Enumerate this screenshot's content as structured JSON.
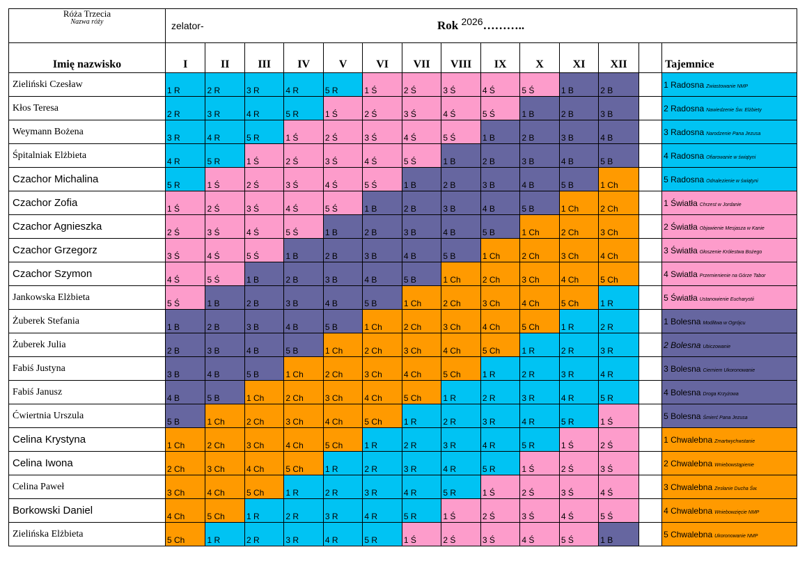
{
  "header": {
    "rose_name": "Róża Trzecia",
    "rose_caption": "Nazwa róży",
    "zelator_label": "zelator-",
    "year_label": "Rok",
    "year_value": "2026",
    "year_dots": "……….."
  },
  "columns": {
    "name_header": "Imię nazwisko",
    "months": [
      "I",
      "II",
      "III",
      "IV",
      "V",
      "VI",
      "VII",
      "VIII",
      "IX",
      "X",
      "XI",
      "XII"
    ],
    "mysteries_header": "Tajemnice"
  },
  "colors": {
    "R": "#00c3f3",
    "S": "#fd9ccb",
    "B": "#6666a0",
    "Ch": "#ff9a00"
  },
  "rows": [
    {
      "name": "Zieliński Czesław",
      "font": "serif",
      "cells": [
        "1 R",
        "2 R",
        "3 R",
        "4 R",
        "5 R",
        "1 Ś",
        "2 Ś",
        "3 Ś",
        "4 Ś",
        "5 Ś",
        "1 B",
        "2 B"
      ],
      "mystery": {
        "title": "1 Radosna",
        "sub": "Zwiastowanie NMP",
        "color": "R"
      }
    },
    {
      "name": "Kłos Teresa",
      "font": "serif",
      "cells": [
        "2 R",
        "3 R",
        "4 R",
        "5 R",
        "1 Ś",
        "2 Ś",
        "3 Ś",
        "4 Ś",
        "5 Ś",
        "1 B",
        "2 B",
        "3 B"
      ],
      "mystery": {
        "title": "2 Radosna",
        "sub": "Nawiedzenie Św. Elżbiety",
        "color": "R"
      }
    },
    {
      "name": "Weymann Bożena",
      "font": "serif",
      "cells": [
        "3 R",
        "4 R",
        "5 R",
        "1 Ś",
        "2 Ś",
        "3 Ś",
        "4 Ś",
        "5 Ś",
        "1 B",
        "2 B",
        "3 B",
        "4 B"
      ],
      "mystery": {
        "title": "3 Radosna",
        "sub": "Narodzenie Pana Jezusa",
        "color": "R"
      }
    },
    {
      "name": "Śpitalniak Elżbieta",
      "font": "serif",
      "cells": [
        "4 R",
        "5 R",
        "1 Ś",
        "2 Ś",
        "3 Ś",
        "4 Ś",
        "5 Ś",
        "1 B",
        "2 B",
        "3 B",
        "4 B",
        "5 B"
      ],
      "mystery": {
        "title": "4 Radosna",
        "sub": "Ofiarowanie w świątyni",
        "color": "R"
      }
    },
    {
      "name": "Czachor Michalina",
      "font": "sans",
      "cells": [
        "5 R",
        "1 Ś",
        "2 Ś",
        "3 Ś",
        "4 Ś",
        "5 Ś",
        "1 B",
        "2 B",
        "3 B",
        "4 B",
        "5 B",
        "1 Ch"
      ],
      "mystery": {
        "title": "5 Radosna",
        "sub": "Odnalezienie w świątyni",
        "color": "R"
      }
    },
    {
      "name": "Czachor Zofia",
      "font": "sans",
      "cells": [
        "1 Ś",
        "2 Ś",
        "3 Ś",
        "4 Ś",
        "5 Ś",
        "1 B",
        "2 B",
        "3 B",
        "4 B",
        "5 B",
        "1 Ch",
        "2 Ch"
      ],
      "mystery": {
        "title": "1 Światła",
        "sub": "Chrzest w Jordanie",
        "color": "S"
      }
    },
    {
      "name": "Czachor Agnieszka",
      "font": "sans",
      "cells": [
        "2 Ś",
        "3 Ś",
        "4 Ś",
        "5 Ś",
        "1 B",
        "2 B",
        "3 B",
        "4 B",
        "5 B",
        "1 Ch",
        "2 Ch",
        "3 Ch"
      ],
      "mystery": {
        "title": "2 Światła",
        "sub": "Objawienie Mesjasza w Kanie",
        "color": "S"
      }
    },
    {
      "name": "Czachor Grzegorz",
      "font": "sans",
      "cells": [
        "3 Ś",
        "4 Ś",
        "5 Ś",
        "1 B",
        "2 B",
        "3 B",
        "4 B",
        "5 B",
        "1 Ch",
        "2 Ch",
        "3 Ch",
        "4 Ch"
      ],
      "mystery": {
        "title": "3 Światła",
        "sub": "Głoszenie Królestwa Bożego",
        "color": "S"
      }
    },
    {
      "name": "Czachor Szymon",
      "font": "sans",
      "cells": [
        "4 Ś",
        "5 Ś",
        "1 B",
        "2 B",
        "3 B",
        "4 B",
        "5 B",
        "1 Ch",
        "2 Ch",
        "3 Ch",
        "4 Ch",
        "5 Ch"
      ],
      "mystery": {
        "title": "4 Swiatla",
        "sub": "Przemienienie na Górze Tabor",
        "color": "S"
      }
    },
    {
      "name": "Jankowska Elżbieta",
      "font": "serif",
      "cells": [
        "5 Ś",
        "1 B",
        "2 B",
        "3 B",
        "4 B",
        "5 B",
        "1 Ch",
        "2 Ch",
        "3 Ch",
        "4 Ch",
        "5 Ch",
        "1 R"
      ],
      "mystery": {
        "title": "5 Światła",
        "sub": "Ustanowienie Eucharystii",
        "color": "S"
      }
    },
    {
      "name": "Żuberek Stefania",
      "font": "serif",
      "cells": [
        "1 B",
        "2 B",
        "3 B",
        "4 B",
        "5 B",
        "1 Ch",
        "2 Ch",
        "3 Ch",
        "4 Ch",
        "5 Ch",
        "1 R",
        "2 R"
      ],
      "mystery": {
        "title": "1 Bolesna",
        "sub": "Modlitwa w Ogrójcu",
        "color": "B"
      }
    },
    {
      "name": "Żuberek Julia",
      "font": "serif",
      "cells": [
        "2 B",
        "3 B",
        "4 B",
        "5 B",
        "1 Ch",
        "2 Ch",
        "3 Ch",
        "4 Ch",
        "5 Ch",
        "1 R",
        "2 R",
        "3 R"
      ],
      "mystery": {
        "title": "2 Bolesna",
        "sub": "Ubiczowanie",
        "color": "B",
        "italic": true
      }
    },
    {
      "name": "Fabiś Justyna",
      "font": "serif",
      "cells": [
        "3 B",
        "4 B",
        "5 B",
        "1 Ch",
        "2 Ch",
        "3 Ch",
        "4 Ch",
        "5 Ch",
        "1 R",
        "2 R",
        "3 R",
        "4 R"
      ],
      "mystery": {
        "title": "3 Bolesna",
        "sub": "Cierniem Ukoronowanie",
        "color": "B"
      }
    },
    {
      "name": "Fabiś Janusz",
      "font": "serif",
      "cells": [
        "4 B",
        "5 B",
        "1 Ch",
        "2 Ch",
        "3 Ch",
        "4 Ch",
        "5 Ch",
        "1 R",
        "2 R",
        "3 R",
        "4 R",
        "5 R"
      ],
      "mystery": {
        "title": "4 Bolesna",
        "sub": "Droga Krzyżowa",
        "color": "B"
      }
    },
    {
      "name": "Ćwiertnia Urszula",
      "font": "serif",
      "cells": [
        "5 B",
        "1 Ch",
        "2 Ch",
        "3 Ch",
        "4 Ch",
        "5 Ch",
        "1 R",
        "2 R",
        "3 R",
        "4 R",
        "5 R",
        "1 Ś"
      ],
      "mystery": {
        "title": "5 Bolesna",
        "sub": "Śmierć Pana Jezusa",
        "color": "B"
      }
    },
    {
      "name": "Celina Krystyna",
      "font": "sans",
      "cells": [
        "1 Ch",
        "2 Ch",
        "3 Ch",
        "4 Ch",
        "5 Ch",
        "1 R",
        "2 R",
        "3 R",
        "4 R",
        "5 R",
        "1 Ś",
        "2 Ś"
      ],
      "mystery": {
        "title": "1 Chwalebna",
        "sub": "Zmartwychwstanie",
        "color": "Ch"
      }
    },
    {
      "name": "Celina Iwona",
      "font": "sans",
      "cells": [
        "2 Ch",
        "3 Ch",
        "4 Ch",
        "5 Ch",
        "1 R",
        "2 R",
        "3 R",
        "4 R",
        "5 R",
        "1 Ś",
        "2 Ś",
        "3 Ś"
      ],
      "mystery": {
        "title": "2 Chwalebna",
        "sub": "Wniebowstąpienie",
        "color": "Ch"
      }
    },
    {
      "name": "Celina Paweł",
      "font": "serif",
      "cells": [
        "3 Ch",
        "4 Ch",
        "5 Ch",
        "1 R",
        "2 R",
        "3 R",
        "4 R",
        "5 R",
        "1 Ś",
        "2 Ś",
        "3 Ś",
        "4 Ś"
      ],
      "mystery": {
        "title": "3 Chwalebna",
        "sub": "Zesłanie Ducha Św.",
        "color": "Ch"
      }
    },
    {
      "name": "Borkowski Daniel",
      "font": "sans",
      "cells": [
        "4 Ch",
        "5 Ch",
        "1 R",
        "2 R",
        "3 R",
        "4 R",
        "5 R",
        "1 Ś",
        "2 Ś",
        "3 Ś",
        "4 Ś",
        "5 Ś"
      ],
      "mystery": {
        "title": "4 Chwalebna",
        "sub": "Wniebowzięcie NMP",
        "color": "Ch"
      }
    },
    {
      "name": "Zielińska Elżbieta",
      "font": "serif",
      "cells": [
        "5 Ch",
        "1 R",
        "2 R",
        "3 R",
        "4 R",
        "5 R",
        "1 Ś",
        "2 Ś",
        "3 Ś",
        "4 Ś",
        "5 Ś",
        "1 B"
      ],
      "mystery": {
        "title": "5 Chwalebna",
        "sub": "Ukoronowanie NMP",
        "color": "Ch"
      }
    }
  ]
}
